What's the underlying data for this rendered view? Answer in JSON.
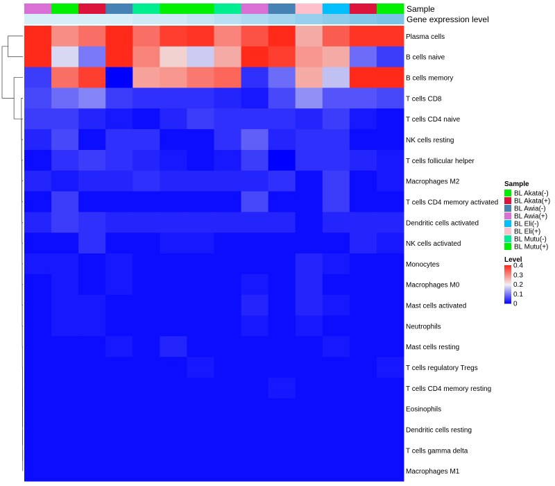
{
  "chart_data": {
    "type": "heatmap",
    "annotation_tracks": [
      "Sample",
      "Gene expression level"
    ],
    "columns": [
      {
        "sample": "BL Awia(+)",
        "sample_color": "#DA70D6",
        "expression_color": "#D6EEF8"
      },
      {
        "sample": "BL Akata(-)",
        "sample_color": "#00EE00",
        "expression_color": "#D6EEF8"
      },
      {
        "sample": "BL Akata(+)",
        "sample_color": "#DC143C",
        "expression_color": "#D6EEF8"
      },
      {
        "sample": "BL Awia(-)",
        "sample_color": "#4682B4",
        "expression_color": "#D6EEF8"
      },
      {
        "sample": "BL Mutu(-)",
        "sample_color": "#00EE90",
        "expression_color": "#CFE9F6"
      },
      {
        "sample": "BL Mutu(+)",
        "sample_color": "#00EE00",
        "expression_color": "#CFE9F6"
      },
      {
        "sample": "BL Mutu(+)",
        "sample_color": "#00EE00",
        "expression_color": "#C4E4F4"
      },
      {
        "sample": "BL Mutu(-)",
        "sample_color": "#00EE90",
        "expression_color": "#B8DFF2"
      },
      {
        "sample": "BL Awia(+)",
        "sample_color": "#DA70D6",
        "expression_color": "#ADDAF0"
      },
      {
        "sample": "BL Awia(-)",
        "sample_color": "#4682B4",
        "expression_color": "#A2D5EE"
      },
      {
        "sample": "BL Eli(+)",
        "sample_color": "#FFC0CB",
        "expression_color": "#97D0EC"
      },
      {
        "sample": "BL Eli(-)",
        "sample_color": "#00BFFF",
        "expression_color": "#8CCBEA"
      },
      {
        "sample": "BL Akata(+)",
        "sample_color": "#DC143C",
        "expression_color": "#82C6E8"
      },
      {
        "sample": "BL Akata(-)",
        "sample_color": "#00EE00",
        "expression_color": "#7AC2E6"
      }
    ],
    "rows": [
      "Plasma cells",
      "B cells naive",
      "B cells memory",
      "T cells CD8",
      "T cells CD4 naive",
      "NK cells resting",
      "T cells follicular helper",
      "Macrophages M2",
      "T cells CD4 memory activated",
      "Dendritic cells activated",
      "NK cells activated",
      "Monocytes",
      "Macrophages M0",
      "Mast cells activated",
      "Neutrophils",
      "Mast cells resting",
      "T cells regulatory  Tregs",
      "T cells CD4 memory resting",
      "Eosinophils",
      "Dendritic cells resting",
      "T cells gamma delta",
      "Macrophages M1"
    ],
    "values": [
      [
        0.4,
        0.3,
        0.33,
        0.43,
        0.33,
        0.38,
        0.39,
        0.31,
        0.36,
        0.41,
        0.27,
        0.35,
        0.39,
        0.39
      ],
      [
        0.44,
        0.18,
        0.1,
        0.45,
        0.31,
        0.23,
        0.17,
        0.27,
        0.45,
        0.38,
        0.29,
        0.27,
        0.09,
        0.05
      ],
      [
        0.05,
        0.33,
        0.38,
        0.0,
        0.28,
        0.29,
        0.32,
        0.34,
        0.04,
        0.09,
        0.27,
        0.16,
        0.44,
        0.44
      ],
      [
        0.06,
        0.09,
        0.11,
        0.05,
        0.04,
        0.04,
        0.04,
        0.03,
        0.02,
        0.06,
        0.12,
        0.07,
        0.07,
        0.06
      ],
      [
        0.05,
        0.05,
        0.03,
        0.02,
        0.01,
        0.03,
        0.05,
        0.04,
        0.04,
        0.04,
        0.03,
        0.05,
        0.02,
        0.01
      ],
      [
        0.03,
        0.06,
        0.01,
        0.04,
        0.04,
        0.01,
        0.01,
        0.04,
        0.08,
        0.03,
        0.04,
        0.04,
        0.01,
        0.01
      ],
      [
        0.01,
        0.04,
        0.05,
        0.04,
        0.03,
        0.02,
        0.01,
        0.02,
        0.05,
        0.0,
        0.04,
        0.04,
        0.03,
        0.02
      ],
      [
        0.03,
        0.02,
        0.03,
        0.03,
        0.04,
        0.03,
        0.03,
        0.03,
        0.03,
        0.04,
        0.01,
        0.05,
        0.01,
        0.02
      ],
      [
        0.01,
        0.05,
        0.01,
        0.01,
        0.01,
        0.01,
        0.01,
        0.01,
        0.06,
        0.01,
        0.01,
        0.05,
        0.01,
        0.01
      ],
      [
        0.03,
        0.05,
        0.04,
        0.03,
        0.03,
        0.03,
        0.03,
        0.03,
        0.03,
        0.03,
        0.01,
        0.03,
        0.03,
        0.03
      ],
      [
        0.01,
        0.01,
        0.04,
        0.01,
        0.01,
        0.02,
        0.02,
        0.01,
        0.01,
        0.01,
        0.01,
        0.01,
        0.03,
        0.02
      ],
      [
        0.02,
        0.02,
        0.01,
        0.02,
        0.01,
        0.01,
        0.01,
        0.01,
        0.01,
        0.01,
        0.03,
        0.02,
        0.01,
        0.01
      ],
      [
        0.01,
        0.02,
        0.01,
        0.02,
        0.01,
        0.01,
        0.01,
        0.01,
        0.02,
        0.01,
        0.03,
        0.01,
        0.01,
        0.01
      ],
      [
        0.01,
        0.02,
        0.02,
        0.01,
        0.01,
        0.01,
        0.01,
        0.01,
        0.03,
        0.01,
        0.03,
        0.02,
        0.01,
        0.01
      ],
      [
        0.01,
        0.02,
        0.02,
        0.01,
        0.01,
        0.01,
        0.01,
        0.01,
        0.02,
        0.01,
        0.02,
        0.01,
        0.01,
        0.01
      ],
      [
        0.01,
        0.01,
        0.01,
        0.02,
        0.01,
        0.03,
        0.01,
        0.01,
        0.01,
        0.01,
        0.01,
        0.02,
        0.01,
        0.01
      ],
      [
        0.01,
        0.01,
        0.01,
        0.01,
        0.01,
        0.01,
        0.02,
        0.01,
        0.01,
        0.01,
        0.01,
        0.01,
        0.01,
        0.02
      ],
      [
        0.01,
        0.01,
        0.01,
        0.01,
        0.01,
        0.01,
        0.01,
        0.01,
        0.01,
        0.02,
        0.01,
        0.01,
        0.01,
        0.01
      ],
      [
        0.01,
        0.01,
        0.01,
        0.01,
        0.01,
        0.01,
        0.01,
        0.01,
        0.01,
        0.01,
        0.01,
        0.01,
        0.01,
        0.01
      ],
      [
        0.01,
        0.01,
        0.01,
        0.01,
        0.01,
        0.01,
        0.01,
        0.01,
        0.01,
        0.01,
        0.01,
        0.01,
        0.01,
        0.01
      ],
      [
        0.01,
        0.01,
        0.01,
        0.01,
        0.01,
        0.01,
        0.01,
        0.01,
        0.01,
        0.01,
        0.01,
        0.01,
        0.01,
        0.01
      ],
      [
        0.01,
        0.01,
        0.01,
        0.01,
        0.01,
        0.01,
        0.01,
        0.01,
        0.01,
        0.01,
        0.01,
        0.01,
        0.01,
        0.01
      ]
    ],
    "row_dendrogram_merges": [
      [
        20,
        21,
        0.005
      ],
      [
        -1,
        19,
        0.008
      ],
      [
        -2,
        18,
        0.01
      ],
      [
        -3,
        17,
        0.012
      ],
      [
        -4,
        16,
        0.014
      ],
      [
        -5,
        15,
        0.016
      ],
      [
        -6,
        14,
        0.018
      ],
      [
        -7,
        13,
        0.02
      ],
      [
        -8,
        12,
        0.022
      ],
      [
        -9,
        11,
        0.024
      ],
      [
        -10,
        10,
        0.026
      ],
      [
        -11,
        9,
        0.028
      ],
      [
        -12,
        8,
        0.03
      ],
      [
        -13,
        7,
        0.032
      ],
      [
        -14,
        6,
        0.035
      ],
      [
        -15,
        5,
        0.04
      ],
      [
        -16,
        4,
        0.045
      ],
      [
        -17,
        3,
        0.05
      ],
      [
        -18,
        2,
        0.3
      ],
      [
        0,
        1,
        0.5
      ],
      [
        -19,
        -20,
        0.7
      ]
    ],
    "color_scale": {
      "label": "Level",
      "min": 0,
      "max": 0.4,
      "ticks": [
        0,
        0.1,
        0.2,
        0.3,
        0.4
      ],
      "tick_labels": [
        "0",
        "0.1",
        "0.2",
        "0.3",
        "0.4"
      ],
      "low_color": "#0000FF",
      "mid_color": "#F0F0F0",
      "high_color": "#FF2A1A"
    },
    "sample_legend": {
      "title": "Sample",
      "items": [
        {
          "label": "BL Akata(-)",
          "color": "#00EE00"
        },
        {
          "label": "BL Akata(+)",
          "color": "#DC143C"
        },
        {
          "label": "BL Awia(-)",
          "color": "#4682B4"
        },
        {
          "label": "BL Awia(+)",
          "color": "#DA70D6"
        },
        {
          "label": "BL Eli(-)",
          "color": "#00BFFF"
        },
        {
          "label": "BL Eli(+)",
          "color": "#FFC0CB"
        },
        {
          "label": "BL Mutu(-)",
          "color": "#00EE90"
        },
        {
          "label": "BL Mutu(+)",
          "color": "#00EE00"
        }
      ]
    }
  }
}
